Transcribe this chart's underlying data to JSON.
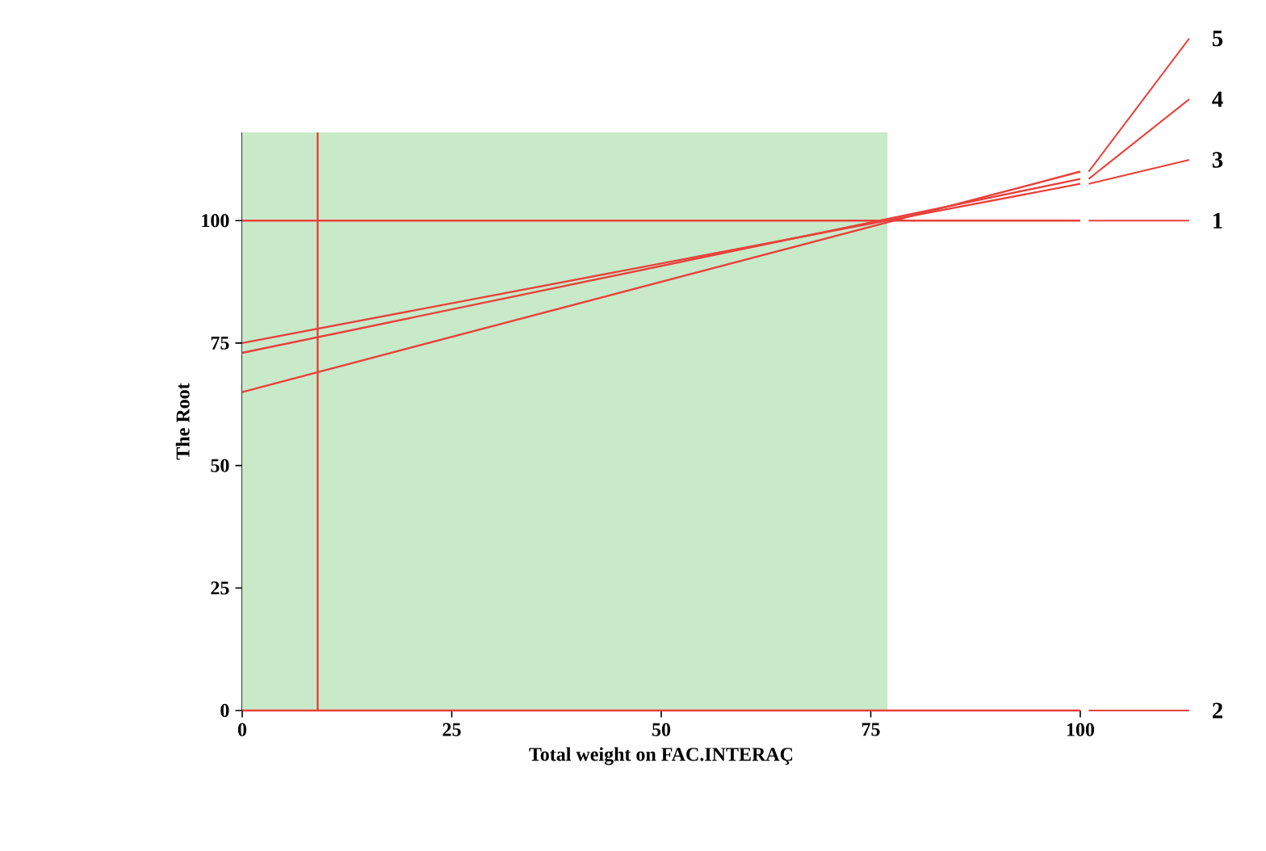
{
  "chart_data": {
    "type": "line",
    "xlabel": "Total weight on FAC.INTERAÇ",
    "ylabel": "The Root",
    "x": [
      0,
      100
    ],
    "series": [
      {
        "name": "1",
        "color": "#e8413c",
        "values": [
          100,
          100
        ]
      },
      {
        "name": "2",
        "color": "#e8413c",
        "values": [
          0,
          0
        ]
      },
      {
        "name": "3",
        "color": "#e8413c",
        "values": [
          75,
          107.5
        ]
      },
      {
        "name": "4",
        "color": "#e8413c",
        "values": [
          73,
          108.5
        ]
      },
      {
        "name": "5",
        "color": "#e8413c",
        "values": [
          65,
          110
        ]
      }
    ],
    "xlim": [
      0,
      100
    ],
    "ylim": [
      0,
      118
    ],
    "xticks": [
      0,
      25,
      50,
      75,
      100
    ],
    "yticks": [
      0,
      25,
      50,
      75,
      100
    ],
    "ref_lines": [
      {
        "axis": "x",
        "value": 9,
        "color": "#e8413c"
      }
    ],
    "bands": [
      {
        "axis": "x",
        "from": 0,
        "to": 77,
        "color": "#c8eac8"
      }
    ],
    "grid": false,
    "legend": "right",
    "marker": "none",
    "line_style": "solid"
  }
}
